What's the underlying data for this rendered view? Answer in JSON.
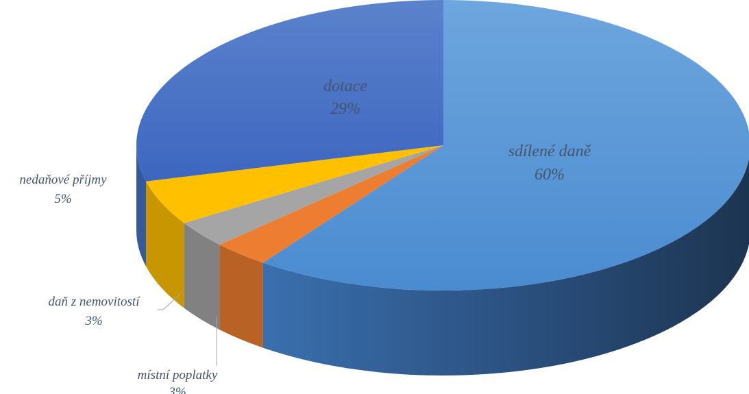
{
  "chart_data": {
    "type": "pie",
    "title": "",
    "slices": [
      {
        "label": "sdílené daně",
        "value": 60,
        "value_label": "60%",
        "color": "#4d8fd4",
        "label_position": "inside"
      },
      {
        "label": "místní poplatky",
        "value": 3,
        "value_label": "3%",
        "color": "#ed7d31",
        "label_position": "outside"
      },
      {
        "label": "daň z nemovitostí",
        "value": 3,
        "value_label": "3%",
        "color": "#a5a5a5",
        "label_position": "outside"
      },
      {
        "label": "nedaňové příjmy",
        "value": 5,
        "value_label": "5%",
        "color": "#ffc000",
        "label_position": "outside"
      },
      {
        "label": "dotace",
        "value": 29,
        "value_label": "29%",
        "color": "#4472c4",
        "label_position": "inside"
      }
    ],
    "style": "3d",
    "legend": "none"
  }
}
